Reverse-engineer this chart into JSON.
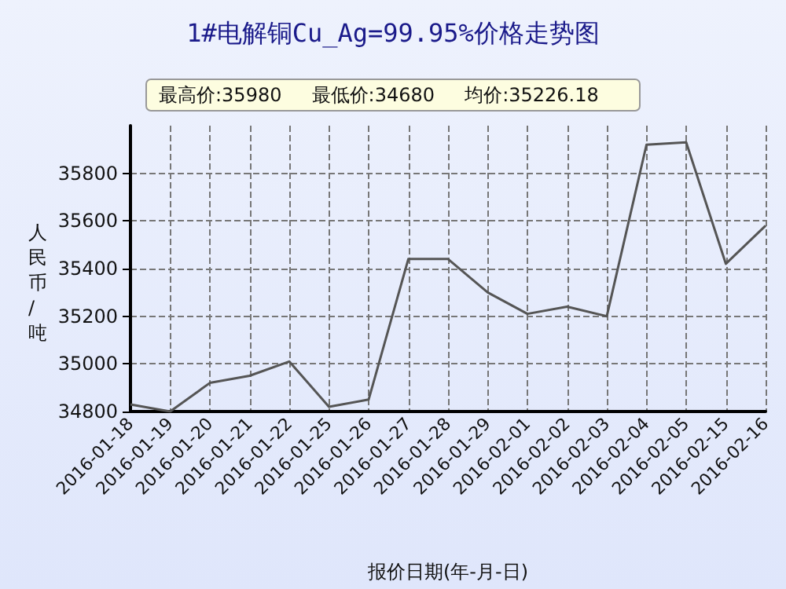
{
  "chart_data": {
    "type": "line",
    "title": "1#电解铜Cu_Ag=99.95%价格走势图",
    "xlabel": "报价日期(年-月-日)",
    "ylabel": "人民币/吨",
    "annotations": [
      "最高价:35980",
      "最低价:34680",
      "均价:35226.18"
    ],
    "categories": [
      "2016-01-18",
      "2016-01-19",
      "2016-01-20",
      "2016-01-21",
      "2016-01-22",
      "2016-01-25",
      "2016-01-26",
      "2016-01-27",
      "2016-01-28",
      "2016-01-29",
      "2016-02-01",
      "2016-02-02",
      "2016-02-03",
      "2016-02-04",
      "2016-02-05",
      "2016-02-15",
      "2016-02-16"
    ],
    "series": [
      {
        "color": "#555555",
        "values": [
          34830,
          34800,
          34920,
          34950,
          35010,
          34820,
          34850,
          35440,
          35440,
          35300,
          35210,
          35240,
          35200,
          35920,
          35930,
          35420,
          35580
        ]
      }
    ],
    "ylim": [
      34800,
      36000
    ],
    "yticks": [
      34800,
      35000,
      35200,
      35400,
      35600,
      35800
    ],
    "grid": true,
    "marker": "none",
    "line_style": "solid"
  }
}
